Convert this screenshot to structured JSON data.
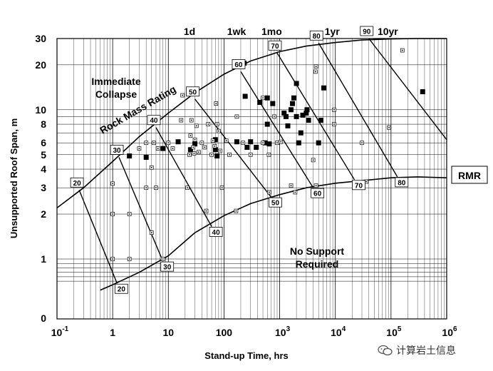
{
  "chart_data": {
    "type": "scatter",
    "title": "",
    "xlabel": "Stand-up Time, hrs",
    "ylabel": "Unsupported Roof Span, m",
    "x_scale": "log",
    "y_scale": "log",
    "xlim": [
      0.1,
      1000000
    ],
    "ylim_labels": [
      "0",
      "1",
      "2",
      "3",
      "4",
      "5",
      "6",
      "8",
      "10",
      "20",
      "30"
    ],
    "x_tick_labels": [
      {
        "base": "10",
        "exp": "-1",
        "value": 0.1
      },
      {
        "base": "1",
        "exp": "",
        "value": 1
      },
      {
        "base": "10",
        "exp": "",
        "value": 10
      },
      {
        "base": "100",
        "exp": "",
        "value": 100
      },
      {
        "base": "10",
        "exp": "3",
        "value": 1000
      },
      {
        "base": "10",
        "exp": "4",
        "value": 10000
      },
      {
        "base": "10",
        "exp": "5",
        "value": 100000
      },
      {
        "base": "10",
        "exp": "6",
        "value": 1000000
      }
    ],
    "y_ticks": [
      {
        "label": "30",
        "value": 30
      },
      {
        "label": "20",
        "value": 20
      },
      {
        "label": "10",
        "value": 10
      },
      {
        "label": "8",
        "value": 8
      },
      {
        "label": "6",
        "value": 6
      },
      {
        "label": "5",
        "value": 5
      },
      {
        "label": "4",
        "value": 4
      },
      {
        "label": "3",
        "value": 3
      },
      {
        "label": "2",
        "value": 2
      },
      {
        "label": "1",
        "value": 1
      }
    ],
    "time_labels": [
      {
        "label": "1d",
        "value": 24
      },
      {
        "label": "1wk",
        "value": 168
      },
      {
        "label": "1mo",
        "value": 720
      },
      {
        "label": "1yr",
        "value": 8760
      },
      {
        "label": "10yr",
        "value": 87600
      }
    ],
    "region_labels": {
      "upper": [
        "Immediate",
        "Collapse"
      ],
      "lower": [
        "No Support",
        "Required"
      ],
      "curve": "Rock Mass Rating",
      "rmr": "RMR"
    },
    "upper_boundary": [
      [
        0.1,
        2.2
      ],
      [
        0.3,
        3.0
      ],
      [
        1,
        4.5
      ],
      [
        3,
        6.6
      ],
      [
        10,
        9.5
      ],
      [
        30,
        13.0
      ],
      [
        100,
        17.3
      ],
      [
        300,
        21.2
      ],
      [
        1000,
        24.5
      ],
      [
        3000,
        26.7
      ],
      [
        10000,
        28.2
      ],
      [
        30000,
        29.3
      ],
      [
        100000,
        29.8
      ],
      [
        300000,
        30.0
      ],
      [
        1000000,
        30.0
      ]
    ],
    "lower_boundary": [
      [
        0.6,
        0.3
      ],
      [
        1,
        0.42
      ],
      [
        3,
        0.7
      ],
      [
        10,
        1.05
      ],
      [
        30,
        1.5
      ],
      [
        100,
        1.95
      ],
      [
        300,
        2.35
      ],
      [
        1000,
        2.7
      ],
      [
        3000,
        3.0
      ],
      [
        10000,
        3.22
      ],
      [
        30000,
        3.35
      ],
      [
        100000,
        3.5
      ],
      [
        300000,
        3.55
      ],
      [
        1000000,
        3.5
      ]
    ],
    "rmr_lines": [
      {
        "rmr": "20",
        "top": [
          0.25,
          2.9
        ],
        "bottom": [
          1.2,
          0.45
        ]
      },
      {
        "rmr": "30",
        "top": [
          1.3,
          4.8
        ],
        "bottom": [
          8,
          0.95
        ]
      },
      {
        "rmr": "40",
        "top": [
          6,
          7.6
        ],
        "bottom": [
          60,
          1.65
        ]
      },
      {
        "rmr": "50",
        "top": [
          30,
          11.8
        ],
        "bottom": [
          700,
          2.6
        ]
      },
      {
        "rmr": "60",
        "top": [
          200,
          18.0
        ],
        "bottom": [
          4000,
          3.0
        ]
      },
      {
        "rmr": "70",
        "top": [
          900,
          24.0
        ],
        "bottom": [
          22000,
          3.4
        ]
      },
      {
        "rmr": "80",
        "top": [
          5000,
          28.0
        ],
        "bottom": [
          130000,
          3.55
        ]
      },
      {
        "rmr": "90",
        "top": [
          40000,
          30.0
        ],
        "bottom": [
          1000000,
          6.3
        ]
      }
    ],
    "series": [
      {
        "marker": "filled-square",
        "points": [
          [
            2,
            4.9
          ],
          [
            4,
            4.8
          ],
          [
            8,
            5.5
          ],
          [
            15,
            6.1
          ],
          [
            25,
            5.4
          ],
          [
            30,
            5.9
          ],
          [
            70,
            6.3
          ],
          [
            70,
            5.4
          ],
          [
            75,
            4.9
          ],
          [
            230,
            20.5
          ],
          [
            240,
            12.3
          ],
          [
            170,
            6.1
          ],
          [
            260,
            5.6
          ],
          [
            300,
            6.1
          ],
          [
            380,
            5.6
          ],
          [
            440,
            11.2
          ],
          [
            550,
            6.0
          ],
          [
            600,
            12.0
          ],
          [
            600,
            8.0
          ],
          [
            650,
            5.9
          ],
          [
            750,
            11.0
          ],
          [
            1200,
            9.5
          ],
          [
            1300,
            9.0
          ],
          [
            1400,
            7.8
          ],
          [
            1600,
            10.0
          ],
          [
            1700,
            11.0
          ],
          [
            2000,
            15.0
          ],
          [
            2000,
            9.0
          ],
          [
            2200,
            6.0
          ],
          [
            2400,
            7.0
          ],
          [
            2600,
            9.2
          ],
          [
            3100,
            10.0
          ],
          [
            3300,
            8.5
          ],
          [
            5000,
            6.0
          ],
          [
            5500,
            8.5
          ],
          [
            6200,
            14.0
          ],
          [
            370000,
            13.2
          ],
          [
            1800,
            12.0
          ],
          [
            3000,
            9.5
          ]
        ]
      },
      {
        "marker": "open-square",
        "points": [
          [
            1,
            3.2
          ],
          [
            1,
            2.0
          ],
          [
            1,
            1.0
          ],
          [
            2,
            2.0
          ],
          [
            2,
            1.0
          ],
          [
            3,
            5.5
          ],
          [
            4,
            3.0
          ],
          [
            4,
            6.0
          ],
          [
            5,
            4.1
          ],
          [
            5,
            1.5
          ],
          [
            6,
            3.0
          ],
          [
            5.5,
            6.0
          ],
          [
            6.5,
            5.5
          ],
          [
            8,
            1.0
          ],
          [
            10,
            6.0
          ],
          [
            12,
            5.5
          ],
          [
            17,
            8.5
          ],
          [
            18,
            12.5
          ],
          [
            22,
            3.0
          ],
          [
            24,
            5.0
          ],
          [
            25,
            6.7
          ],
          [
            26,
            8.5
          ],
          [
            28,
            5.6
          ],
          [
            29,
            5.1
          ],
          [
            30,
            6.3
          ],
          [
            32,
            7.8
          ],
          [
            35,
            5.2
          ],
          [
            40,
            6.0
          ],
          [
            45,
            5.6
          ],
          [
            48,
            2.1
          ],
          [
            52,
            8.0
          ],
          [
            60,
            5.0
          ],
          [
            63,
            6.2
          ],
          [
            68,
            5.7
          ],
          [
            72,
            11.0
          ],
          [
            75,
            8.0
          ],
          [
            80,
            7.2
          ],
          [
            85,
            5.3
          ],
          [
            92,
            3.0
          ],
          [
            110,
            6.2
          ],
          [
            125,
            5.0
          ],
          [
            165,
            2.1
          ],
          [
            170,
            9.0
          ],
          [
            220,
            6.0
          ],
          [
            300,
            5.0
          ],
          [
            500,
            12.0
          ],
          [
            500,
            6.0
          ],
          [
            640,
            5.0
          ],
          [
            650,
            2.8
          ],
          [
            800,
            9.0
          ],
          [
            900,
            6.0
          ],
          [
            1600,
            3.1
          ],
          [
            1900,
            2.8
          ],
          [
            1050,
            6.1
          ],
          [
            4000,
            4.6
          ],
          [
            4400,
            18.0
          ],
          [
            4500,
            19.5
          ],
          [
            4500,
            3.1
          ],
          [
            9500,
            8.0
          ],
          [
            9500,
            10.0
          ],
          [
            30000,
            6.0
          ],
          [
            36000,
            3.3
          ],
          [
            92000,
            7.6
          ],
          [
            160000,
            25.0
          ]
        ]
      }
    ]
  },
  "watermark": {
    "text": "计算岩土信息"
  }
}
